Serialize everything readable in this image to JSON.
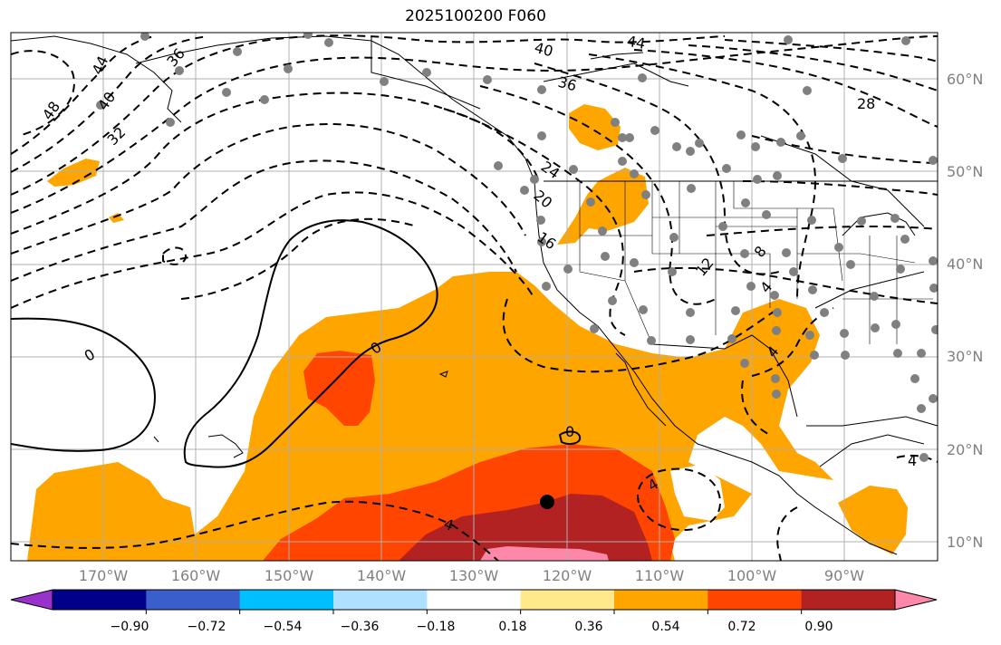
{
  "title": "2025100200 F060",
  "lat_labels": [
    "60°N",
    "50°N",
    "40°N",
    "30°N",
    "20°N",
    "10°N"
  ],
  "lon_labels": [
    "170°W",
    "160°W",
    "150°W",
    "140°W",
    "130°W",
    "120°W",
    "110°W",
    "100°W",
    "90°W"
  ],
  "colorbar": {
    "labels": [
      "−0.90",
      "−0.72",
      "−0.54",
      "−0.36",
      "−0.18",
      "0.18",
      "0.36",
      "0.54",
      "0.72",
      "0.90"
    ],
    "colors": [
      "#9932cc",
      "#00008b",
      "#3a5fcd",
      "#00bfff",
      "#b0e0ff",
      "#ffffff",
      "#ffe98a",
      "#ffa500",
      "#ff4500",
      "#b22222",
      "#ff88aa"
    ]
  },
  "contour_labels": [
    "48",
    "44",
    "40",
    "36",
    "32",
    "40",
    "44",
    "36",
    "28",
    "24",
    "20",
    "16",
    "12",
    "8",
    "4",
    "4",
    "0",
    "0",
    "0",
    "4",
    "4",
    "4"
  ],
  "colors": {
    "orange": "#ffa500",
    "red_orange": "#ff4500",
    "dark_red": "#b22222",
    "pink": "#ff88aa",
    "station": "#808080",
    "grid": "#b0b0b0"
  }
}
